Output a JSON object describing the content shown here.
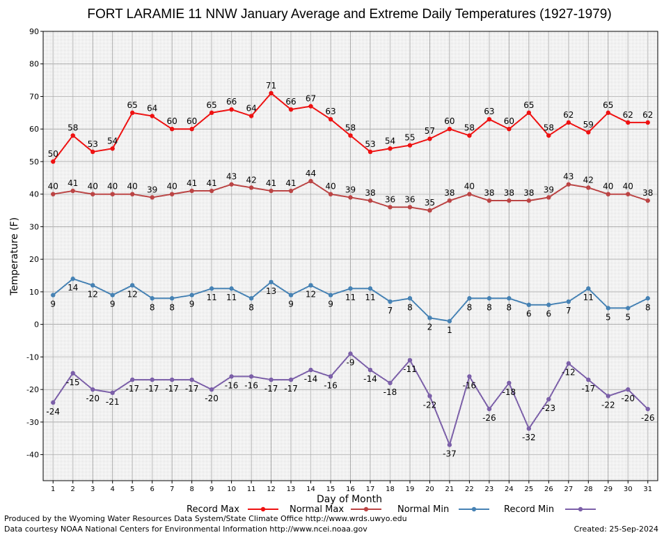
{
  "chart_data": {
    "type": "line",
    "title": "FORT LARAMIE 11 NNW January Average and Extreme Daily Temperatures (1927-1979)",
    "xlabel": "Day of Month",
    "ylabel": "Temperature (F)",
    "ylim": [
      -48,
      90
    ],
    "yticks": [
      90,
      80,
      70,
      60,
      50,
      40,
      30,
      20,
      10,
      0,
      -10,
      -20,
      -30,
      -40
    ],
    "xlim": [
      0.5,
      31.5
    ],
    "x": [
      1,
      2,
      3,
      4,
      5,
      6,
      7,
      8,
      9,
      10,
      11,
      12,
      13,
      14,
      15,
      16,
      17,
      18,
      19,
      20,
      21,
      22,
      23,
      24,
      25,
      26,
      27,
      28,
      29,
      30,
      31
    ],
    "grid": true,
    "legend_position": "bottom",
    "series": [
      {
        "name": "Record Max",
        "color": "#ee1111",
        "label_pos": "above",
        "values": [
          50,
          58,
          53,
          54,
          65,
          64,
          60,
          60,
          65,
          66,
          64,
          71,
          66,
          67,
          63,
          58,
          53,
          54,
          55,
          57,
          60,
          58,
          63,
          60,
          65,
          58,
          62,
          59,
          65,
          62,
          62
        ]
      },
      {
        "name": "Normal Max",
        "color": "#bb4444",
        "label_pos": "above",
        "values": [
          40,
          41,
          40,
          40,
          40,
          39,
          40,
          41,
          41,
          43,
          42,
          41,
          41,
          44,
          40,
          39,
          38,
          36,
          36,
          35,
          38,
          40,
          38,
          38,
          38,
          39,
          43,
          42,
          40,
          40,
          38
        ]
      },
      {
        "name": "Normal Min",
        "color": "#4682b4",
        "label_pos": "below",
        "values": [
          9,
          14,
          12,
          9,
          12,
          8,
          8,
          9,
          11,
          11,
          8,
          13,
          9,
          12,
          9,
          11,
          11,
          7,
          8,
          2,
          1,
          8,
          8,
          8,
          6,
          6,
          7,
          11,
          5,
          5,
          8
        ]
      },
      {
        "name": "Record Min",
        "color": "#7b5fa8",
        "label_pos": "below",
        "values": [
          -24,
          -15,
          -20,
          -21,
          -17,
          -17,
          -17,
          -17,
          -20,
          -16,
          -16,
          -17,
          -17,
          -14,
          -16,
          -9,
          -14,
          -18,
          -11,
          -22,
          -37,
          -16,
          -26,
          -18,
          -32,
          -23,
          -12,
          -17,
          -22,
          -20,
          -26
        ]
      }
    ]
  },
  "footer": {
    "line1": "Produced by the Wyoming Water Resources Data System/State Climate Office http://www.wrds.uwyo.edu",
    "line2": "Data courtesy NOAA National Centers for Environmental Information http://www.ncei.noaa.gov",
    "created": "Created:  25-Sep-2024"
  }
}
